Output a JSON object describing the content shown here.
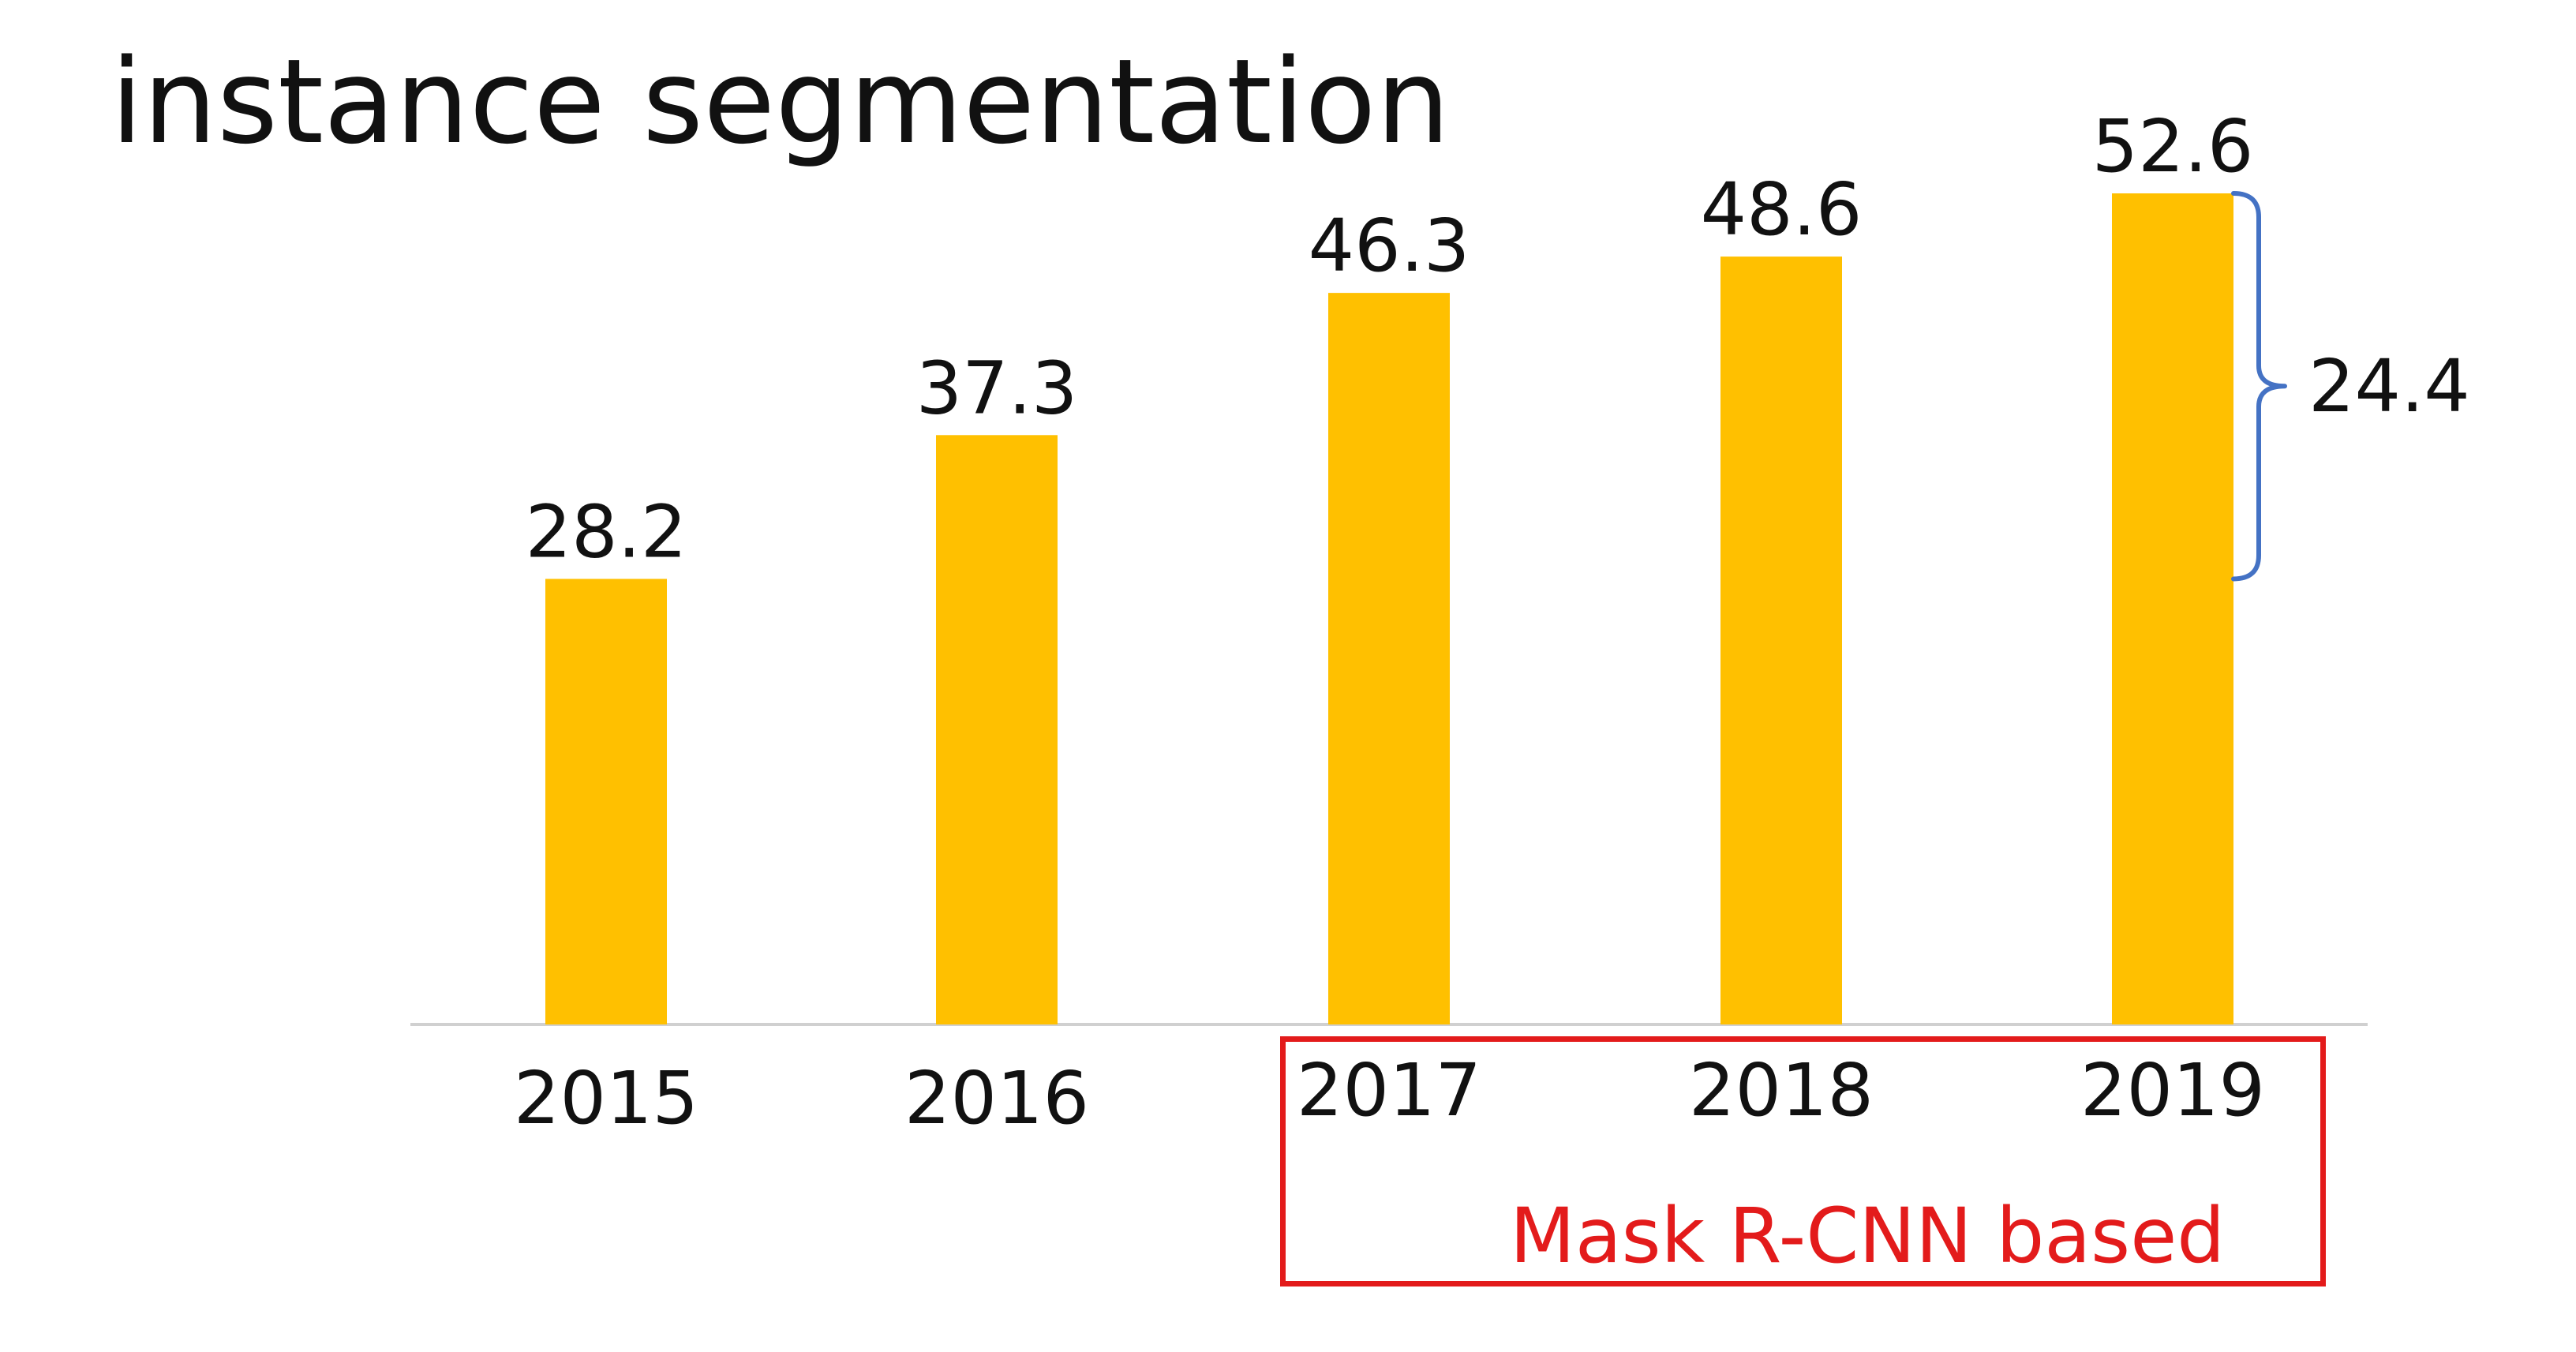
{
  "chart_data": {
    "type": "bar",
    "title": "instance segmentation",
    "categories": [
      "2015",
      "2016",
      "2017",
      "2018",
      "2019"
    ],
    "values": [
      28.2,
      37.3,
      46.3,
      48.6,
      52.6
    ],
    "data_labels": [
      "28.2",
      "37.3",
      "46.3",
      "48.6",
      "52.6"
    ],
    "xlabel": "",
    "ylabel": "",
    "ylim": [
      0,
      52.6
    ],
    "grid": false,
    "legend": "none",
    "bar_color": "#ffc000",
    "annotations": [
      {
        "type": "brace",
        "between_values": [
          28.2,
          52.6
        ],
        "label": "24.4",
        "color": "#4472c4"
      },
      {
        "type": "box",
        "covers_categories": [
          "2017",
          "2018",
          "2019"
        ],
        "label": "Mask R-CNN based",
        "color": "#e31b1b"
      }
    ]
  },
  "colors": {
    "bar": "#ffc000",
    "brace": "#4472c4",
    "annotation": "#e31b1b",
    "axis": "#d0d0d0",
    "text": "#111111"
  }
}
